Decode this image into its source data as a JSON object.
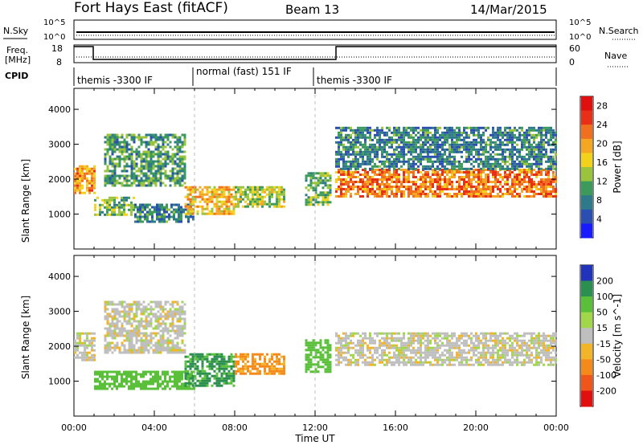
{
  "header": {
    "station": "Fort Hays East (fitACF)",
    "beam": "Beam 13",
    "date": "14/Mar/2015"
  },
  "panels": {
    "noise": {
      "left_label": "N.Sky",
      "right_label": "N.Search",
      "left_ticks": [
        "10^5",
        "10^0"
      ],
      "right_ticks": [
        "10^5",
        "10^0"
      ]
    },
    "freq": {
      "left_label": "Freq.",
      "left_unit": "[MHz]",
      "right_label": "Nave",
      "left_ticks": [
        "18",
        "8"
      ],
      "right_ticks": [
        "60",
        "0"
      ]
    },
    "cpid": {
      "label": "CPID",
      "segments": [
        "themis -3300 IF",
        "normal (fast) 151 IF",
        "themis -3300 IF"
      ]
    }
  },
  "chart_data": [
    {
      "type": "heatmap",
      "title": "",
      "xlabel": "Time UT",
      "ylabel": "Slant Range [km]",
      "x_ticks": [
        "00:00",
        "04:00",
        "08:00",
        "12:00",
        "16:00",
        "20:00",
        "00:00"
      ],
      "xlim_hours": [
        0,
        24
      ],
      "y_ticks": [
        1000,
        2000,
        3000,
        4000
      ],
      "ylim_km": [
        0,
        4600
      ],
      "colorbar": {
        "label": "Power [dB]",
        "ticks": [
          "4",
          "8",
          "12",
          "16",
          "20",
          "24",
          "28"
        ],
        "range": [
          0,
          30
        ],
        "colors": [
          "#1a1aff",
          "#2a4fb0",
          "#2e7a8a",
          "#3c9a5a",
          "#9ac43c",
          "#f2d21a",
          "#f5a623",
          "#f07020",
          "#e83018",
          "#e01010"
        ]
      },
      "echo_regions": [
        {
          "t_start": 0.0,
          "t_end": 1.0,
          "r_low": 1600,
          "r_high": 2400,
          "level": 20
        },
        {
          "t_start": 1.0,
          "t_end": 3.0,
          "r_low": 1000,
          "r_high": 1500,
          "level": 12
        },
        {
          "t_start": 1.5,
          "t_end": 5.5,
          "r_low": 1800,
          "r_high": 3300,
          "level": 10
        },
        {
          "t_start": 3.0,
          "t_end": 6.0,
          "r_low": 800,
          "r_high": 1300,
          "level": 8
        },
        {
          "t_start": 5.5,
          "t_end": 8.0,
          "r_low": 1000,
          "r_high": 1800,
          "level": 18
        },
        {
          "t_start": 8.0,
          "t_end": 10.5,
          "r_low": 1200,
          "r_high": 1800,
          "level": 14
        },
        {
          "t_start": 11.5,
          "t_end": 12.8,
          "r_low": 1300,
          "r_high": 2200,
          "level": 12
        },
        {
          "t_start": 13.0,
          "t_end": 24.0,
          "r_low": 1500,
          "r_high": 2300,
          "level": 22
        },
        {
          "t_start": 13.0,
          "t_end": 24.0,
          "r_low": 2300,
          "r_high": 3500,
          "level": 8
        }
      ]
    },
    {
      "type": "heatmap",
      "title": "",
      "xlabel": "Time UT",
      "ylabel": "Slant Range [km]",
      "x_ticks": [
        "00:00",
        "04:00",
        "08:00",
        "12:00",
        "16:00",
        "20:00",
        "00:00"
      ],
      "xlim_hours": [
        0,
        24
      ],
      "y_ticks": [
        1000,
        2000,
        3000,
        4000
      ],
      "ylim_km": [
        0,
        4600
      ],
      "colorbar": {
        "label": "Velocity [m s^-1]",
        "ticks": [
          "200",
          "100",
          "50",
          "15",
          "-15",
          "-50",
          "-100",
          "-200"
        ],
        "colors": [
          "#2233bb",
          "#2b8f4f",
          "#5ac03a",
          "#a0d84a",
          "#bfbfbf",
          "#f2b52a",
          "#f58a1a",
          "#f0561a",
          "#e01010"
        ]
      },
      "echo_regions": [
        {
          "t_start": 0.0,
          "t_end": 1.0,
          "r_low": 1600,
          "r_high": 2400,
          "velocity": 0
        },
        {
          "t_start": 1.5,
          "t_end": 5.5,
          "r_low": 1800,
          "r_high": 3300,
          "velocity": 0
        },
        {
          "t_start": 1.0,
          "t_end": 6.0,
          "r_low": 800,
          "r_high": 1300,
          "velocity": 60
        },
        {
          "t_start": 5.5,
          "t_end": 8.0,
          "r_low": 900,
          "r_high": 1800,
          "velocity": 80
        },
        {
          "t_start": 8.0,
          "t_end": 10.5,
          "r_low": 1200,
          "r_high": 1800,
          "velocity": -40
        },
        {
          "t_start": 11.5,
          "t_end": 12.8,
          "r_low": 1300,
          "r_high": 2200,
          "velocity": 60
        },
        {
          "t_start": 13.0,
          "t_end": 24.0,
          "r_low": 1500,
          "r_high": 2400,
          "velocity": 0
        }
      ]
    }
  ]
}
